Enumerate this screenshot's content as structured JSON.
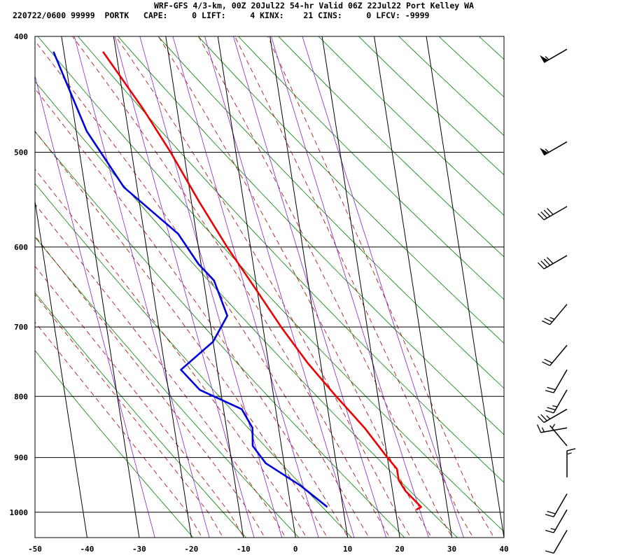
{
  "header": {
    "line1": "WRF-GFS 4/3-km, 00Z 20Jul22 54-hr Valid 06Z 22Jul22 Port Kelley WA",
    "line2": "220722/0600 99999  PORTK   CAPE:     0 LIFT:     4 KINX:    21 CINS:     0 LFCV: -9999"
  },
  "chart_data": {
    "type": "line",
    "chart_kind": "skew-T log-P sounding",
    "x_axis": {
      "min": -50,
      "max": 40,
      "ticks": [
        -50,
        -40,
        -30,
        -20,
        -10,
        0,
        10,
        20,
        30,
        40
      ]
    },
    "y_axis": {
      "scale": "log",
      "min_top": 400,
      "max_bottom": 1050,
      "ticks": [
        400,
        500,
        600,
        700,
        800,
        900,
        1000
      ]
    },
    "series": [
      {
        "color": "#ee0000",
        "points": [
          [
            412,
            -22.5
          ],
          [
            460,
            -16.5
          ],
          [
            500,
            -12.5
          ],
          [
            550,
            -8.5
          ],
          [
            600,
            -4.5
          ],
          [
            650,
            -0.3
          ],
          [
            700,
            3.5
          ],
          [
            750,
            7.5
          ],
          [
            800,
            12.0
          ],
          [
            850,
            16.5
          ],
          [
            900,
            20.0
          ],
          [
            920,
            21.5
          ],
          [
            940,
            21.5
          ],
          [
            960,
            22.5
          ],
          [
            990,
            25.0
          ],
          [
            995,
            24.0
          ]
        ]
      },
      {
        "color": "#0000dd",
        "points": [
          [
            412,
            -32
          ],
          [
            480,
            -28
          ],
          [
            535,
            -22.5
          ],
          [
            585,
            -13.5
          ],
          [
            620,
            -10.5
          ],
          [
            640,
            -8
          ],
          [
            685,
            -6.5
          ],
          [
            720,
            -10
          ],
          [
            760,
            -17
          ],
          [
            790,
            -14
          ],
          [
            820,
            -6.5
          ],
          [
            850,
            -5
          ],
          [
            880,
            -5.5
          ],
          [
            910,
            -3.5
          ],
          [
            950,
            2.5
          ],
          [
            990,
            7
          ]
        ]
      }
    ],
    "background_lines": {
      "isotherm_color": "#000000",
      "dry_adiabat_color": "#008000",
      "moist_adiabat_color": "#aa0000",
      "mixing_ratio_color": "#8822cc"
    },
    "wind_barbs": [
      {
        "p": 410,
        "speed_kt": 55,
        "dir": 240
      },
      {
        "p": 490,
        "speed_kt": 55,
        "dir": 240
      },
      {
        "p": 555,
        "speed_kt": 40,
        "dir": 240
      },
      {
        "p": 610,
        "speed_kt": 40,
        "dir": 240
      },
      {
        "p": 670,
        "speed_kt": 25,
        "dir": 220
      },
      {
        "p": 725,
        "speed_kt": 20,
        "dir": 220
      },
      {
        "p": 760,
        "speed_kt": 20,
        "dir": 210
      },
      {
        "p": 790,
        "speed_kt": 25,
        "dir": 210
      },
      {
        "p": 820,
        "speed_kt": 25,
        "dir": 240
      },
      {
        "p": 850,
        "speed_kt": 15,
        "dir": 260
      },
      {
        "p": 880,
        "speed_kt": 5,
        "dir": 320
      },
      {
        "p": 935,
        "speed_kt": 15,
        "dir": 360
      },
      {
        "p": 965,
        "speed_kt": 20,
        "dir": 210
      },
      {
        "p": 995,
        "speed_kt": 15,
        "dir": 210
      },
      {
        "p": 1035,
        "speed_kt": 10,
        "dir": 210
      }
    ]
  }
}
